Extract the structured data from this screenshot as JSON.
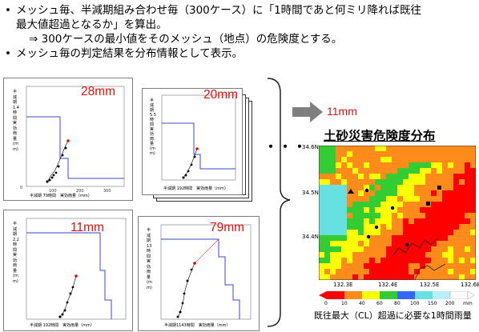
{
  "bullets": [
    {
      "marker": "•",
      "text": "メッシュ毎、半減期組み合わせ毎（300ケース）に「1時間であと何ミリ降れば既往"
    },
    {
      "marker": "",
      "text": "最大値超過となるか」を算出。"
    },
    {
      "marker": "",
      "text": "⇒  300ケースの最小値をそのメッシュ（地点）の危険度とする。"
    },
    {
      "marker": "•",
      "text": "メッシュ毎の判定結果を分布情報として表示。"
    }
  ],
  "panels": [
    {
      "mm": "28mm",
      "y_label": "半減期1.4時間実効雨量(mm)",
      "x_label": "半減期 79時間　実効雨量（mm）"
    },
    {
      "mm": "20mm",
      "y_label": "半減期5.5時間実効雨量(mm)",
      "x_label": "半減期 192時間　実効雨量（mm）"
    },
    {
      "mm": "11mm",
      "y_label": "半減期2.2時間実効雨量(mm)",
      "x_label": "半減期 192時間　実効雨量（mm）"
    },
    {
      "mm": "79mm",
      "y_label": "半減期13時間実効雨量(mm)",
      "x_label": "半減期1143時間　実効雨量（mm）"
    }
  ],
  "ellipsis": "・・・",
  "result_mm": "11mm",
  "map": {
    "title": "土砂災害危険度分布",
    "lat_labels": [
      "34.6N",
      "34.5N",
      "34.4N"
    ],
    "lon_labels": [
      "132.3E",
      "132.4E",
      "132.5E",
      "132.6E"
    ],
    "legend_values": [
      "0",
      "10",
      "40",
      "60",
      "80",
      "100",
      "150",
      "200"
    ],
    "legend_unit": "mm",
    "palette": {
      "red": "#ff0000",
      "orange": "#ff8c1a",
      "yellow": "#ffff00",
      "green": "#33cc33",
      "blue": "#3366ff",
      "cyan": "#66e0e0",
      "lightblue": "#b8f0f8",
      "white": "#ffffff"
    }
  },
  "caption": "既往最大（CL）超過に必要な1時間雨量"
}
